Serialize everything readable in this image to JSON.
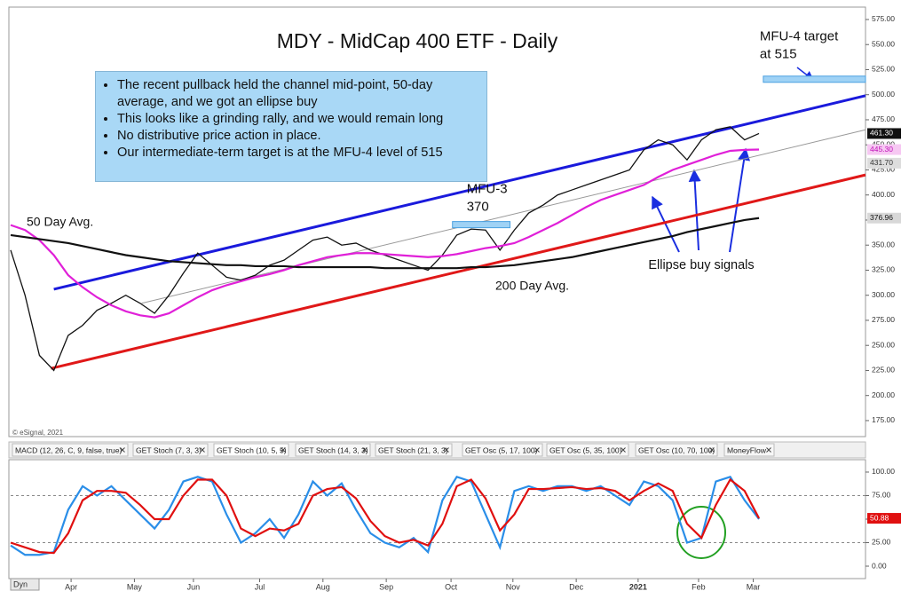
{
  "tabs": [
    "MACD (12, 26, C, 9, false, true)",
    "GET Stoch (7, 3, 3)",
    "GET Stoch (10, 5, 5)",
    "GET Stoch (14, 3, 3)",
    "GET Stoch (21, 3, 3)",
    "GET Osc (5, 17, 100)",
    "GET Osc (5, 35, 100)",
    "GET Osc (10, 70, 100)",
    "MoneyFlow"
  ],
  "dyn": "Dyn",
  "chart_data": [
    {
      "type": "line",
      "title": "MDY - MidCap 400 ETF - Daily",
      "copyright": "© eSignal, 2021",
      "notes": [
        "The recent pullback held the channel mid-point, 50-day average, and we got an ellipse buy",
        "This looks like a grinding rally, and we would remain long",
        "No distributive price action in place.",
        "Our intermediate-term target is at the MFU-4 level of 515"
      ],
      "annotation": "Ellipse buy signals",
      "xlim": [
        0,
        59.4
      ],
      "ylim": [
        160.8,
        585.6
      ],
      "yticks": [
        {
          "value": 575,
          "label": "575.00"
        },
        {
          "value": 550,
          "label": "550.00"
        },
        {
          "value": 525,
          "label": "525.00"
        },
        {
          "value": 500,
          "label": "500.00"
        },
        {
          "value": 475,
          "label": "475.00"
        },
        {
          "value": 450,
          "label": "450.00"
        },
        {
          "value": 425,
          "label": "425.00"
        },
        {
          "value": 400,
          "label": "400.00"
        },
        {
          "value": 375,
          "label": "375.00"
        },
        {
          "value": 350,
          "label": "350.00"
        },
        {
          "value": 325,
          "label": "325.00"
        },
        {
          "value": 300,
          "label": "300.00"
        },
        {
          "value": 275,
          "label": "275.00"
        },
        {
          "value": 250,
          "label": "250.00"
        },
        {
          "value": 225,
          "label": "225.00"
        },
        {
          "value": 200,
          "label": "200.00"
        },
        {
          "value": 175,
          "label": "175.00"
        }
      ],
      "x": [
        0,
        1,
        2,
        3,
        4,
        5,
        6,
        7,
        8,
        9,
        10,
        11,
        12,
        13,
        14,
        15,
        16,
        17,
        18,
        19,
        20,
        21,
        22,
        23,
        24,
        25,
        26,
        27,
        28,
        29,
        30,
        31,
        32,
        33,
        34,
        35,
        36,
        37,
        38,
        39,
        40,
        41,
        42,
        43,
        44,
        45,
        46,
        47,
        48,
        49,
        50,
        51,
        52
      ],
      "series": [
        {
          "color": "#111111",
          "values": [
            345,
            300,
            240,
            225,
            260,
            270,
            285,
            292,
            300,
            292,
            282,
            300,
            322,
            342,
            330,
            318,
            315,
            320,
            330,
            335,
            345,
            355,
            358,
            350,
            352,
            345,
            340,
            335,
            330,
            325,
            340,
            360,
            366,
            365,
            345,
            365,
            382,
            390,
            400,
            405,
            410,
            415,
            420,
            425,
            445,
            455,
            450,
            435,
            455,
            465,
            468,
            455,
            461.3
          ]
        },
        {
          "name": "50 Day Avg.",
          "color": "#e020d8",
          "values": [
            370,
            365,
            355,
            340,
            320,
            308,
            298,
            290,
            284,
            280,
            278,
            282,
            290,
            298,
            305,
            310,
            314,
            318,
            321,
            325,
            330,
            334,
            338,
            340,
            342,
            342,
            341,
            340,
            339,
            338,
            339,
            341,
            344,
            347,
            349,
            352,
            358,
            365,
            372,
            380,
            388,
            395,
            400,
            405,
            410,
            418,
            425,
            430,
            435,
            440,
            444,
            445,
            445.3
          ]
        },
        {
          "name": "200 Day Avg.",
          "color": "#111111",
          "values": [
            360,
            358,
            356,
            354,
            352,
            349,
            346,
            343,
            340,
            338,
            336,
            334,
            333,
            332,
            331,
            330,
            330,
            329,
            329,
            329,
            328,
            328,
            328,
            328,
            328,
            328,
            327,
            327,
            327,
            327,
            327,
            327,
            328,
            328,
            329,
            330,
            332,
            334,
            336,
            338,
            341,
            344,
            347,
            350,
            353,
            356,
            359,
            363,
            366,
            369,
            372,
            375,
            376.96
          ]
        }
      ],
      "lines": [
        {
          "color": "#1a1adc",
          "x": [
            3,
            59.4
          ],
          "y": [
            306,
            499
          ]
        },
        {
          "color": "#e01818",
          "x": [
            2.8,
            59.4
          ],
          "y": [
            227,
            420
          ]
        },
        {
          "color": "#999999",
          "x": [
            9.1,
            59.4
          ],
          "y": [
            292,
            465
          ]
        }
      ],
      "targets": [
        {
          "label": "MFU-3",
          "value": 370,
          "x": [
            30.7,
            34.7
          ]
        },
        {
          "label": "MFU-4 target",
          "sublabel": "at 515",
          "value": 515,
          "x": [
            52.3,
            59.4
          ]
        }
      ],
      "labels": [
        {
          "value": 461.3,
          "label": "461.30",
          "color": "#111111",
          "text_color": "#ffffff"
        },
        {
          "value": 445.3,
          "label": "445.30",
          "color": "#f6c8f2",
          "text_color": "#c010b8"
        },
        {
          "value": 431.7,
          "label": "431.70",
          "color": "#dddddd",
          "text_color": "#333333"
        },
        {
          "value": 376.96,
          "label": "376.96",
          "color": "#d8d8d8",
          "text_color": "#111111"
        }
      ]
    },
    {
      "type": "line",
      "xlim": [
        0,
        59.4
      ],
      "ylim": [
        -13.2,
        111.3
      ],
      "yticks": [
        {
          "value": 100,
          "label": "100.00"
        },
        {
          "value": 75,
          "label": "75.00"
        },
        {
          "value": 50,
          "label": "50.00"
        },
        {
          "value": 25,
          "label": "25.00"
        },
        {
          "value": 0,
          "label": "0.00"
        }
      ],
      "ref_lines": [
        75,
        25
      ],
      "xticks": [
        {
          "value": 4.2,
          "label": "Apr"
        },
        {
          "value": 8.6,
          "label": "May"
        },
        {
          "value": 12.7,
          "label": "Jun"
        },
        {
          "value": 17.3,
          "label": "Jul"
        },
        {
          "value": 21.7,
          "label": "Aug"
        },
        {
          "value": 26.1,
          "label": "Sep"
        },
        {
          "value": 30.6,
          "label": "Oct"
        },
        {
          "value": 34.9,
          "label": "Nov"
        },
        {
          "value": 39.3,
          "label": "Dec"
        },
        {
          "value": 43.6,
          "label": "2021"
        },
        {
          "value": 47.8,
          "label": "Feb"
        },
        {
          "value": 51.6,
          "label": "Mar"
        }
      ],
      "x": [
        0,
        1,
        2,
        3,
        4,
        5,
        6,
        7,
        8,
        9,
        10,
        11,
        12,
        13,
        14,
        15,
        16,
        17,
        18,
        19,
        20,
        21,
        22,
        23,
        24,
        25,
        26,
        27,
        28,
        29,
        30,
        31,
        32,
        33,
        34,
        35,
        36,
        37,
        38,
        39,
        40,
        41,
        42,
        43,
        44,
        45,
        46,
        47,
        48,
        49,
        50,
        51,
        52
      ],
      "series": [
        {
          "color": "#2a8ee8",
          "values": [
            22,
            12,
            12,
            15,
            60,
            85,
            75,
            85,
            70,
            55,
            40,
            60,
            90,
            95,
            90,
            55,
            25,
            35,
            50,
            30,
            55,
            90,
            75,
            88,
            60,
            35,
            25,
            20,
            30,
            15,
            70,
            95,
            90,
            55,
            20,
            80,
            85,
            80,
            85,
            85,
            80,
            85,
            75,
            65,
            90,
            85,
            70,
            25,
            30,
            90,
            95,
            70,
            50
          ]
        },
        {
          "color": "#e01010",
          "values": [
            25,
            20,
            15,
            14,
            35,
            70,
            80,
            80,
            78,
            65,
            50,
            50,
            75,
            92,
            92,
            75,
            40,
            32,
            40,
            38,
            45,
            75,
            82,
            84,
            72,
            48,
            32,
            25,
            28,
            22,
            45,
            85,
            92,
            72,
            38,
            55,
            82,
            82,
            83,
            84,
            82,
            83,
            80,
            70,
            80,
            88,
            80,
            45,
            30,
            65,
            92,
            80,
            50.88
          ]
        }
      ],
      "labels": [
        {
          "value": 50.88,
          "label": "50.88",
          "color": "#e01010",
          "text_color": "#ffffff"
        }
      ]
    }
  ]
}
